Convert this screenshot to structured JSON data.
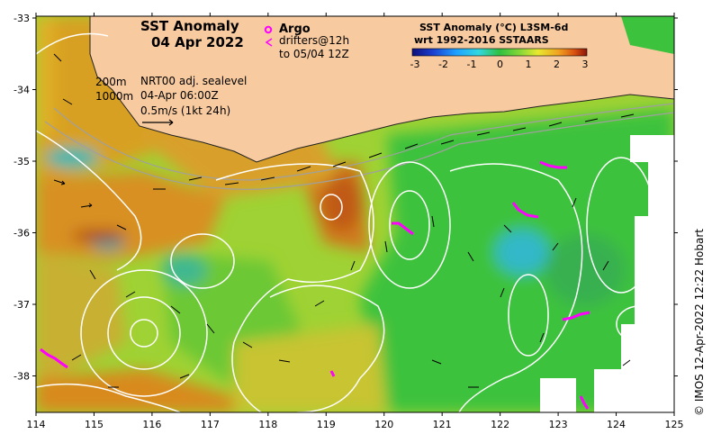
{
  "map": {
    "title_line1": "SST Anomaly",
    "title_line2": "04 Apr 2022",
    "argo_label": "Argo",
    "drifters_line1": "drifters@12h",
    "drifters_line2": "to 05/04 12Z",
    "isobath_200": "200m",
    "isobath_1000": "1000m",
    "sealevel_label": "NRT00 adj. sealevel",
    "sealevel_date": "04-Apr 06:00Z",
    "scale_label": "0.5m/s (1kt 24h)",
    "credit": "© IMOS 12-Apr-2022 12:22 Hobart",
    "lon_ticks": [
      "114",
      "115",
      "116",
      "117",
      "118",
      "119",
      "120",
      "121",
      "122",
      "123",
      "124",
      "125"
    ],
    "lat_ticks": [
      "-33",
      "-34",
      "-35",
      "-36",
      "-37",
      "-38"
    ],
    "colorbar": {
      "title_line1": "SST Anomaly (°C) L3SM-6d",
      "title_line2": "wrt 1992-2016 SSTAARS",
      "ticks": [
        "-3",
        "-2",
        "-1",
        "0",
        "1",
        "2",
        "3"
      ],
      "colors": [
        "#10107a",
        "#1a3fd0",
        "#1fa0ff",
        "#30d8e0",
        "#30c040",
        "#88d838",
        "#e8e830",
        "#f0a020",
        "#d85010",
        "#8c1408"
      ]
    },
    "colors": {
      "land": "#f8caa0",
      "sst_green": "#3cc23c",
      "sst_yellow": "#c8d630",
      "sst_orange": "#d8901c",
      "sst_red": "#b83a10",
      "sst_cyan": "#38b8b0",
      "contour": "#ffffff",
      "argo": "#ff00ff"
    }
  }
}
